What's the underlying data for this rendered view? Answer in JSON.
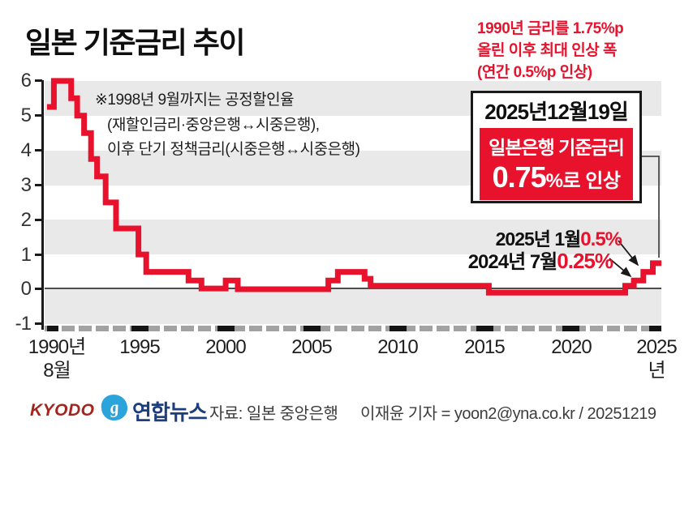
{
  "title": "일본 기준금리 추이",
  "top_right_note": {
    "color": "#e8122d",
    "lines": [
      "1990년 금리를 1.75%p",
      "올린 이후 최대 인상 폭",
      "(연간 0.5%p 인상)"
    ]
  },
  "chart_note": {
    "lines": [
      "※1998년 9월까지는 공정할인율",
      "(재할인금리·중앙은행↔시중은행),",
      "이후 단기 정책금리(시중은행↔시중은행)"
    ]
  },
  "callout": {
    "date": "2025년12월19일",
    "line1": "일본은행 기준금리",
    "value": "0.75",
    "suffix": "%로 인상"
  },
  "annotations": [
    {
      "label": "2025년 1월",
      "value": "0.5%"
    },
    {
      "label": "2024년 7월",
      "value": "0.25%"
    }
  ],
  "y_axis": {
    "labels": [
      "6",
      "5",
      "4",
      "3",
      "2",
      "1",
      "0",
      "-1"
    ]
  },
  "x_axis": {
    "start_label_line1": "1990년",
    "start_label_line2": "8월",
    "labels": [
      "1995",
      "2000",
      "2005",
      "2010",
      "2015",
      "2020"
    ],
    "end_label": "2025년"
  },
  "footer": {
    "kyodo": "KYODO",
    "yonhap_icon_glyph": "g",
    "yonhap": "연합뉴스",
    "source": "자료: 일본 중앙은행",
    "credit": "이재윤 기자 = yoon2@yna.co.kr / 20251219"
  },
  "colors": {
    "accent_red": "#e8122d",
    "band_gray": "#e9e9e9",
    "axis_black": "#1a1a1a",
    "dash_gray": "#a2a2a2",
    "kyodo_red": "#a3251f",
    "yonhap_navy": "#1c3e7c",
    "yonhap_blue": "#2aa4da"
  },
  "chart_data": {
    "type": "line",
    "step": true,
    "title": "일본 기준금리 추이 (일본은행 기준금리, %)",
    "ylabel": "%",
    "ylim": [
      -1,
      6
    ],
    "grid": "alternating horizontal gray bands on odd intervals",
    "x_tick_labels": [
      "1990년 8월",
      "1995",
      "2000",
      "2005",
      "2010",
      "2015",
      "2020",
      "2025년"
    ],
    "x_end": 2025.8,
    "points": [
      {
        "x": 1990.2,
        "y": 5.25
      },
      {
        "x": 1990.6,
        "y": 6.0
      },
      {
        "x": 1991.6,
        "y": 5.5
      },
      {
        "x": 1991.95,
        "y": 5.0
      },
      {
        "x": 1992.35,
        "y": 4.5
      },
      {
        "x": 1992.75,
        "y": 3.75
      },
      {
        "x": 1993.1,
        "y": 3.25
      },
      {
        "x": 1993.6,
        "y": 2.5
      },
      {
        "x": 1994.2,
        "y": 1.75
      },
      {
        "x": 1995.5,
        "y": 1.0
      },
      {
        "x": 1995.95,
        "y": 0.5
      },
      {
        "x": 1998.4,
        "y": 0.25
      },
      {
        "x": 1999.15,
        "y": 0.02
      },
      {
        "x": 2000.55,
        "y": 0.25
      },
      {
        "x": 2001.25,
        "y": 0.0
      },
      {
        "x": 2006.5,
        "y": 0.25
      },
      {
        "x": 2007.05,
        "y": 0.5
      },
      {
        "x": 2008.6,
        "y": 0.3
      },
      {
        "x": 2008.95,
        "y": 0.1
      },
      {
        "x": 2015.8,
        "y": -0.1
      },
      {
        "x": 2023.7,
        "y": 0.1
      },
      {
        "x": 2024.2,
        "y": 0.25
      },
      {
        "x": 2024.75,
        "y": 0.5
      },
      {
        "x": 2025.3,
        "y": 0.75
      }
    ],
    "key_events": [
      {
        "label": "2024년 7월",
        "value": 0.25
      },
      {
        "label": "2025년 1월",
        "value": 0.5
      },
      {
        "label": "2025년 12월 19일",
        "value": 0.75
      }
    ]
  }
}
